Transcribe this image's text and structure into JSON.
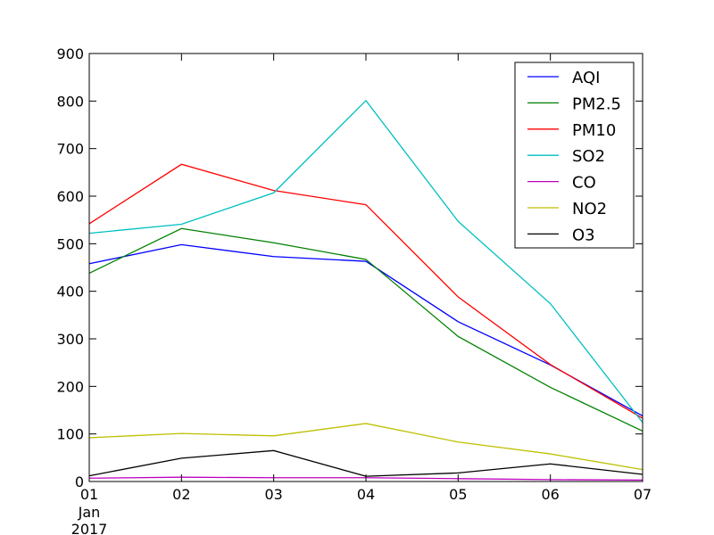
{
  "chart_data": {
    "type": "line",
    "x": [
      "01",
      "02",
      "03",
      "04",
      "05",
      "06",
      "07"
    ],
    "x_sublabels": [
      "Jan",
      "2017"
    ],
    "ylim": [
      0,
      900
    ],
    "yticks": [
      "0",
      "100",
      "200",
      "300",
      "400",
      "500",
      "600",
      "700",
      "800",
      "900"
    ],
    "grid": false,
    "legend_position": "top-right",
    "series": [
      {
        "name": "AQI",
        "color": "#0000ff",
        "values": [
          458,
          498,
          473,
          463,
          336,
          245,
          138
        ]
      },
      {
        "name": "PM2.5",
        "color": "#008000",
        "values": [
          438,
          532,
          502,
          467,
          305,
          198,
          106
        ]
      },
      {
        "name": "PM10",
        "color": "#ff0000",
        "values": [
          542,
          667,
          612,
          582,
          388,
          246,
          133
        ]
      },
      {
        "name": "SO2",
        "color": "#00bfbf",
        "values": [
          522,
          541,
          607,
          801,
          547,
          374,
          124
        ]
      },
      {
        "name": "CO",
        "color": "#bf00bf",
        "values": [
          7,
          9,
          8,
          8,
          6,
          4,
          3
        ]
      },
      {
        "name": "NO2",
        "color": "#bfbf00",
        "values": [
          92,
          101,
          96,
          122,
          83,
          58,
          25
        ]
      },
      {
        "name": "O3",
        "color": "#000000",
        "values": [
          12,
          49,
          65,
          11,
          18,
          37,
          15
        ]
      }
    ]
  }
}
